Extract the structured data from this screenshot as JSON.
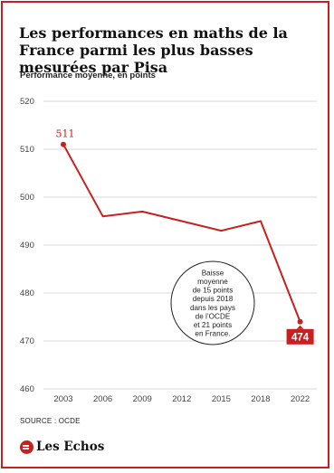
{
  "chart_data": {
    "type": "line",
    "title": "Les performances en maths de la France parmi les plus basses mesurées par Pisa",
    "subtitle": "Performance moyenne, en points",
    "x": [
      "2003",
      "2006",
      "2009",
      "2012",
      "2015",
      "2018",
      "2022"
    ],
    "values": [
      511,
      496,
      497,
      495,
      493,
      495,
      474
    ],
    "ylim": [
      460,
      520
    ],
    "yticks": [
      460,
      470,
      480,
      490,
      500,
      510,
      520
    ],
    "grid": true,
    "series_color": "#c8201e",
    "point_labels": {
      "first": "511",
      "last": "474"
    },
    "annotation_lines": [
      "Baisse",
      "moyenne",
      "de 15 points",
      "depuis 2018",
      "dans les pays",
      "de l’OCDE",
      "et 21 points",
      "en France."
    ]
  },
  "source": "SOURCE : OCDE",
  "brand": {
    "name": "Les Echos",
    "icon": "les-echos-logo-icon",
    "color": "#c8201e"
  }
}
